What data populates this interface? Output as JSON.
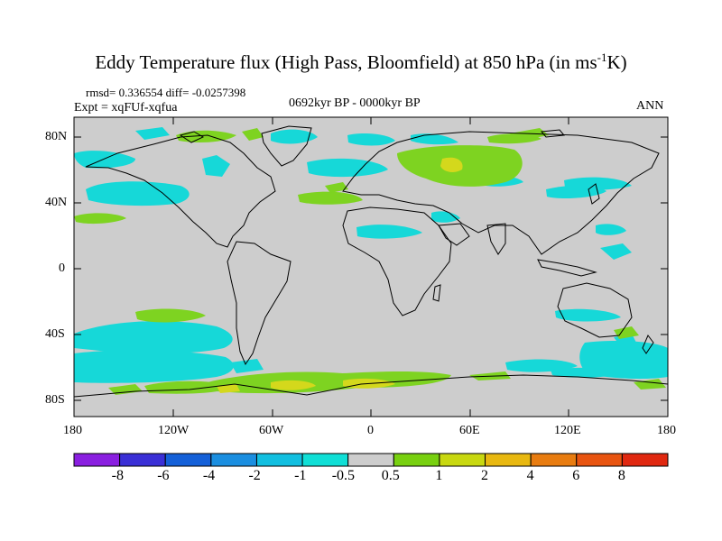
{
  "title": {
    "prefix": "Eddy Temperature flux (High Pass, Bloomfield) at 850 hPa (in ms",
    "superscript": "-1",
    "suffix": "K)"
  },
  "stats": "rmsd= 0.336554  diff= -0.0257398",
  "experiment": "Expt = xqFUf-xqfua",
  "period": "0692kyr BP - 0000kyr BP",
  "season": "ANN",
  "lat_ticks": [
    "80N",
    "40N",
    "0",
    "40S",
    "80S"
  ],
  "lon_ticks": [
    "180",
    "120W",
    "60W",
    "0",
    "60E",
    "120E",
    "180"
  ],
  "colorbar": {
    "labels": [
      "-8",
      "-6",
      "-4",
      "-2",
      "-1",
      "-0.5",
      "0.5",
      "1",
      "2",
      "4",
      "6",
      "8"
    ],
    "colors": [
      "#8a1fe0",
      "#3a2fd6",
      "#1460d8",
      "#1a8ee0",
      "#12bfe0",
      "#10dfd6",
      "#cdcdcd",
      "#78d010",
      "#c8d810",
      "#e8b810",
      "#e87c10",
      "#e85410",
      "#e02810"
    ]
  },
  "map_colors": {
    "background": "#cdcdcd",
    "positive_small": "#7ed321",
    "positive_medium": "#d4d81c",
    "negative_small": "#16d8d8",
    "coastline": "#000000"
  }
}
